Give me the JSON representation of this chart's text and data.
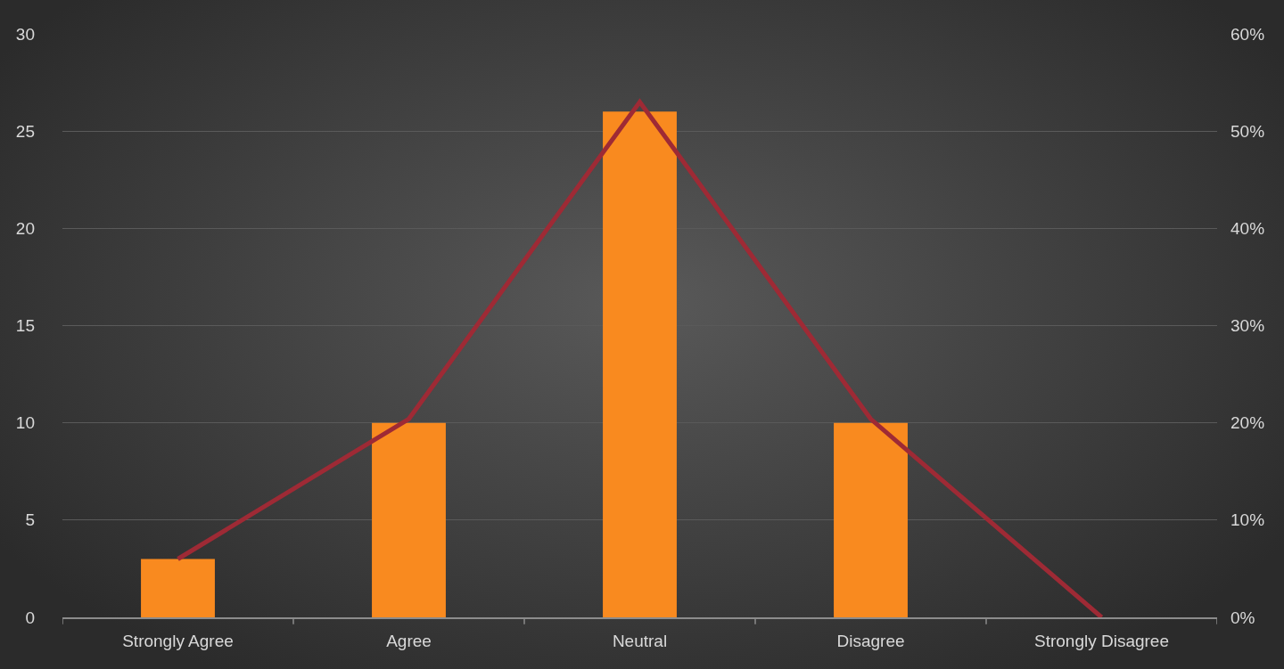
{
  "chart_data": {
    "type": "bar",
    "categories": [
      "Strongly Agree",
      "Agree",
      "Neutral",
      "Disagree",
      "Strongly Disagree"
    ],
    "series": [
      {
        "color": "#f98a1f",
        "values": [
          3,
          10,
          26,
          10,
          0
        ]
      },
      {
        "type": "line",
        "axis": "y2",
        "color": "#9e2a35",
        "values": [
          6,
          20.4,
          53,
          20.4,
          0
        ]
      }
    ],
    "ylim": [
      0,
      30
    ],
    "yticks": [
      0,
      5,
      10,
      15,
      20,
      25,
      30
    ],
    "y2lim": [
      0,
      60
    ],
    "y2ticks": [
      {
        "value": 0,
        "label": "0%"
      },
      {
        "value": 10,
        "label": "10%"
      },
      {
        "value": 20,
        "label": "20%"
      },
      {
        "value": 30,
        "label": "30%"
      },
      {
        "value": 40,
        "label": "40%"
      },
      {
        "value": 50,
        "label": "50%"
      },
      {
        "value": 60,
        "label": "60%"
      }
    ],
    "grid": "y",
    "legend": false,
    "marker": "none",
    "line_style": "solid"
  }
}
